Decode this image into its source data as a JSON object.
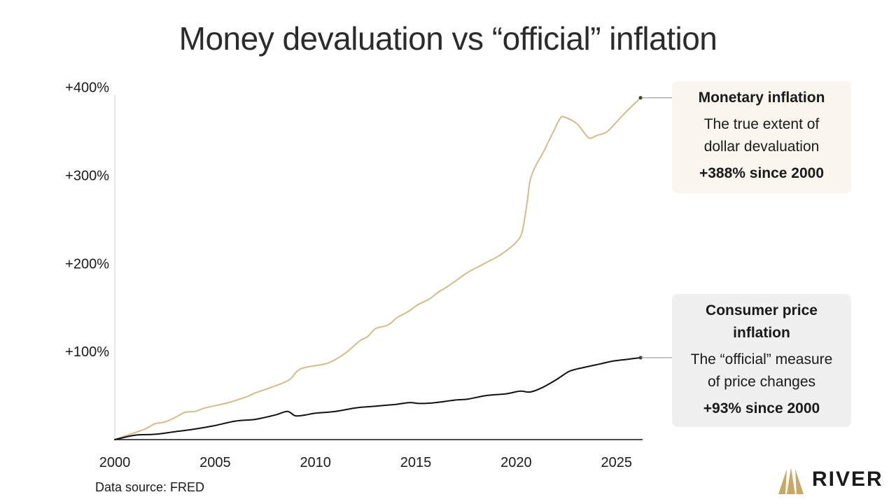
{
  "title": "Money devaluation vs “official” inflation",
  "source": "Data source: FRED",
  "brand": {
    "name": "RIVER",
    "accent": "#c9a866"
  },
  "callouts": {
    "monetary": {
      "heading": "Monetary inflation",
      "desc1": "The true extent of",
      "desc2": "dollar devaluation",
      "value": "+388% since 2000"
    },
    "cpi": {
      "heading1": "Consumer price",
      "heading2": "inflation",
      "desc1": "The “official” measure",
      "desc2": "of price changes",
      "value": "+93% since 2000"
    }
  },
  "chart_data": {
    "type": "line",
    "title": "Money devaluation vs “official” inflation",
    "xlabel": "",
    "ylabel": "",
    "xlim": [
      2000,
      2026.3
    ],
    "ylim": [
      0,
      410
    ],
    "x_ticks": [
      2000,
      2005,
      2010,
      2015,
      2020,
      2025
    ],
    "y_ticks": [
      {
        "value": 100,
        "label": "+100%"
      },
      {
        "value": 200,
        "label": "+200%"
      },
      {
        "value": 300,
        "label": "+300%"
      },
      {
        "value": 400,
        "label": "+400%"
      }
    ],
    "grid": false,
    "series": [
      {
        "name": "Monetary inflation",
        "color": "#d4bc8a",
        "points": [
          [
            2000,
            0
          ],
          [
            2000.5,
            4
          ],
          [
            2001.5,
            12
          ],
          [
            2002.0,
            18
          ],
          [
            2002.5,
            20
          ],
          [
            2003.0,
            25
          ],
          [
            2003.5,
            31
          ],
          [
            2004.0,
            32
          ],
          [
            2004.5,
            36
          ],
          [
            2005.5,
            41
          ],
          [
            2006.5,
            48
          ],
          [
            2007.0,
            53
          ],
          [
            2008.0,
            61
          ],
          [
            2008.7,
            68
          ],
          [
            2009.1,
            78
          ],
          [
            2009.5,
            82
          ],
          [
            2010.5,
            86
          ],
          [
            2011.0,
            91
          ],
          [
            2011.6,
            100
          ],
          [
            2012.2,
            112
          ],
          [
            2012.6,
            117
          ],
          [
            2013.0,
            126
          ],
          [
            2013.6,
            130
          ],
          [
            2014.1,
            139
          ],
          [
            2014.6,
            145
          ],
          [
            2015.1,
            153
          ],
          [
            2015.7,
            160
          ],
          [
            2016.1,
            167
          ],
          [
            2016.6,
            174
          ],
          [
            2017.1,
            182
          ],
          [
            2017.6,
            190
          ],
          [
            2018.1,
            196
          ],
          [
            2018.6,
            202
          ],
          [
            2019.1,
            208
          ],
          [
            2019.6,
            216
          ],
          [
            2020.0,
            224
          ],
          [
            2020.3,
            236
          ],
          [
            2020.55,
            270
          ],
          [
            2020.7,
            295
          ],
          [
            2021.0,
            312
          ],
          [
            2021.3,
            324
          ],
          [
            2021.8,
            347
          ],
          [
            2022.2,
            365
          ],
          [
            2022.4,
            366
          ],
          [
            2022.8,
            362
          ],
          [
            2023.1,
            357
          ],
          [
            2023.5,
            345
          ],
          [
            2023.7,
            342
          ],
          [
            2024.0,
            345
          ],
          [
            2024.5,
            349
          ],
          [
            2024.9,
            358
          ],
          [
            2025.3,
            368
          ],
          [
            2025.7,
            377
          ],
          [
            2026.2,
            388
          ]
        ]
      },
      {
        "name": "Consumer price inflation",
        "color": "#111111",
        "points": [
          [
            2000,
            0
          ],
          [
            2001.0,
            5
          ],
          [
            2002.0,
            6
          ],
          [
            2003.0,
            9
          ],
          [
            2004.0,
            12
          ],
          [
            2005.0,
            16
          ],
          [
            2006.0,
            21
          ],
          [
            2007.0,
            23
          ],
          [
            2008.0,
            28
          ],
          [
            2008.6,
            32
          ],
          [
            2009.0,
            27
          ],
          [
            2009.5,
            28
          ],
          [
            2010.0,
            30
          ],
          [
            2011.0,
            32
          ],
          [
            2012.0,
            36
          ],
          [
            2013.0,
            38
          ],
          [
            2014.0,
            40
          ],
          [
            2014.7,
            42
          ],
          [
            2015.2,
            41
          ],
          [
            2016.0,
            42
          ],
          [
            2017.0,
            45
          ],
          [
            2017.6,
            46
          ],
          [
            2018.5,
            50
          ],
          [
            2019.5,
            52
          ],
          [
            2020.2,
            55
          ],
          [
            2020.7,
            54
          ],
          [
            2021.3,
            59
          ],
          [
            2022.0,
            68
          ],
          [
            2022.6,
            77
          ],
          [
            2023.0,
            80
          ],
          [
            2023.6,
            83
          ],
          [
            2024.2,
            86
          ],
          [
            2024.8,
            89
          ],
          [
            2025.5,
            91
          ],
          [
            2026.2,
            93
          ]
        ]
      }
    ]
  }
}
